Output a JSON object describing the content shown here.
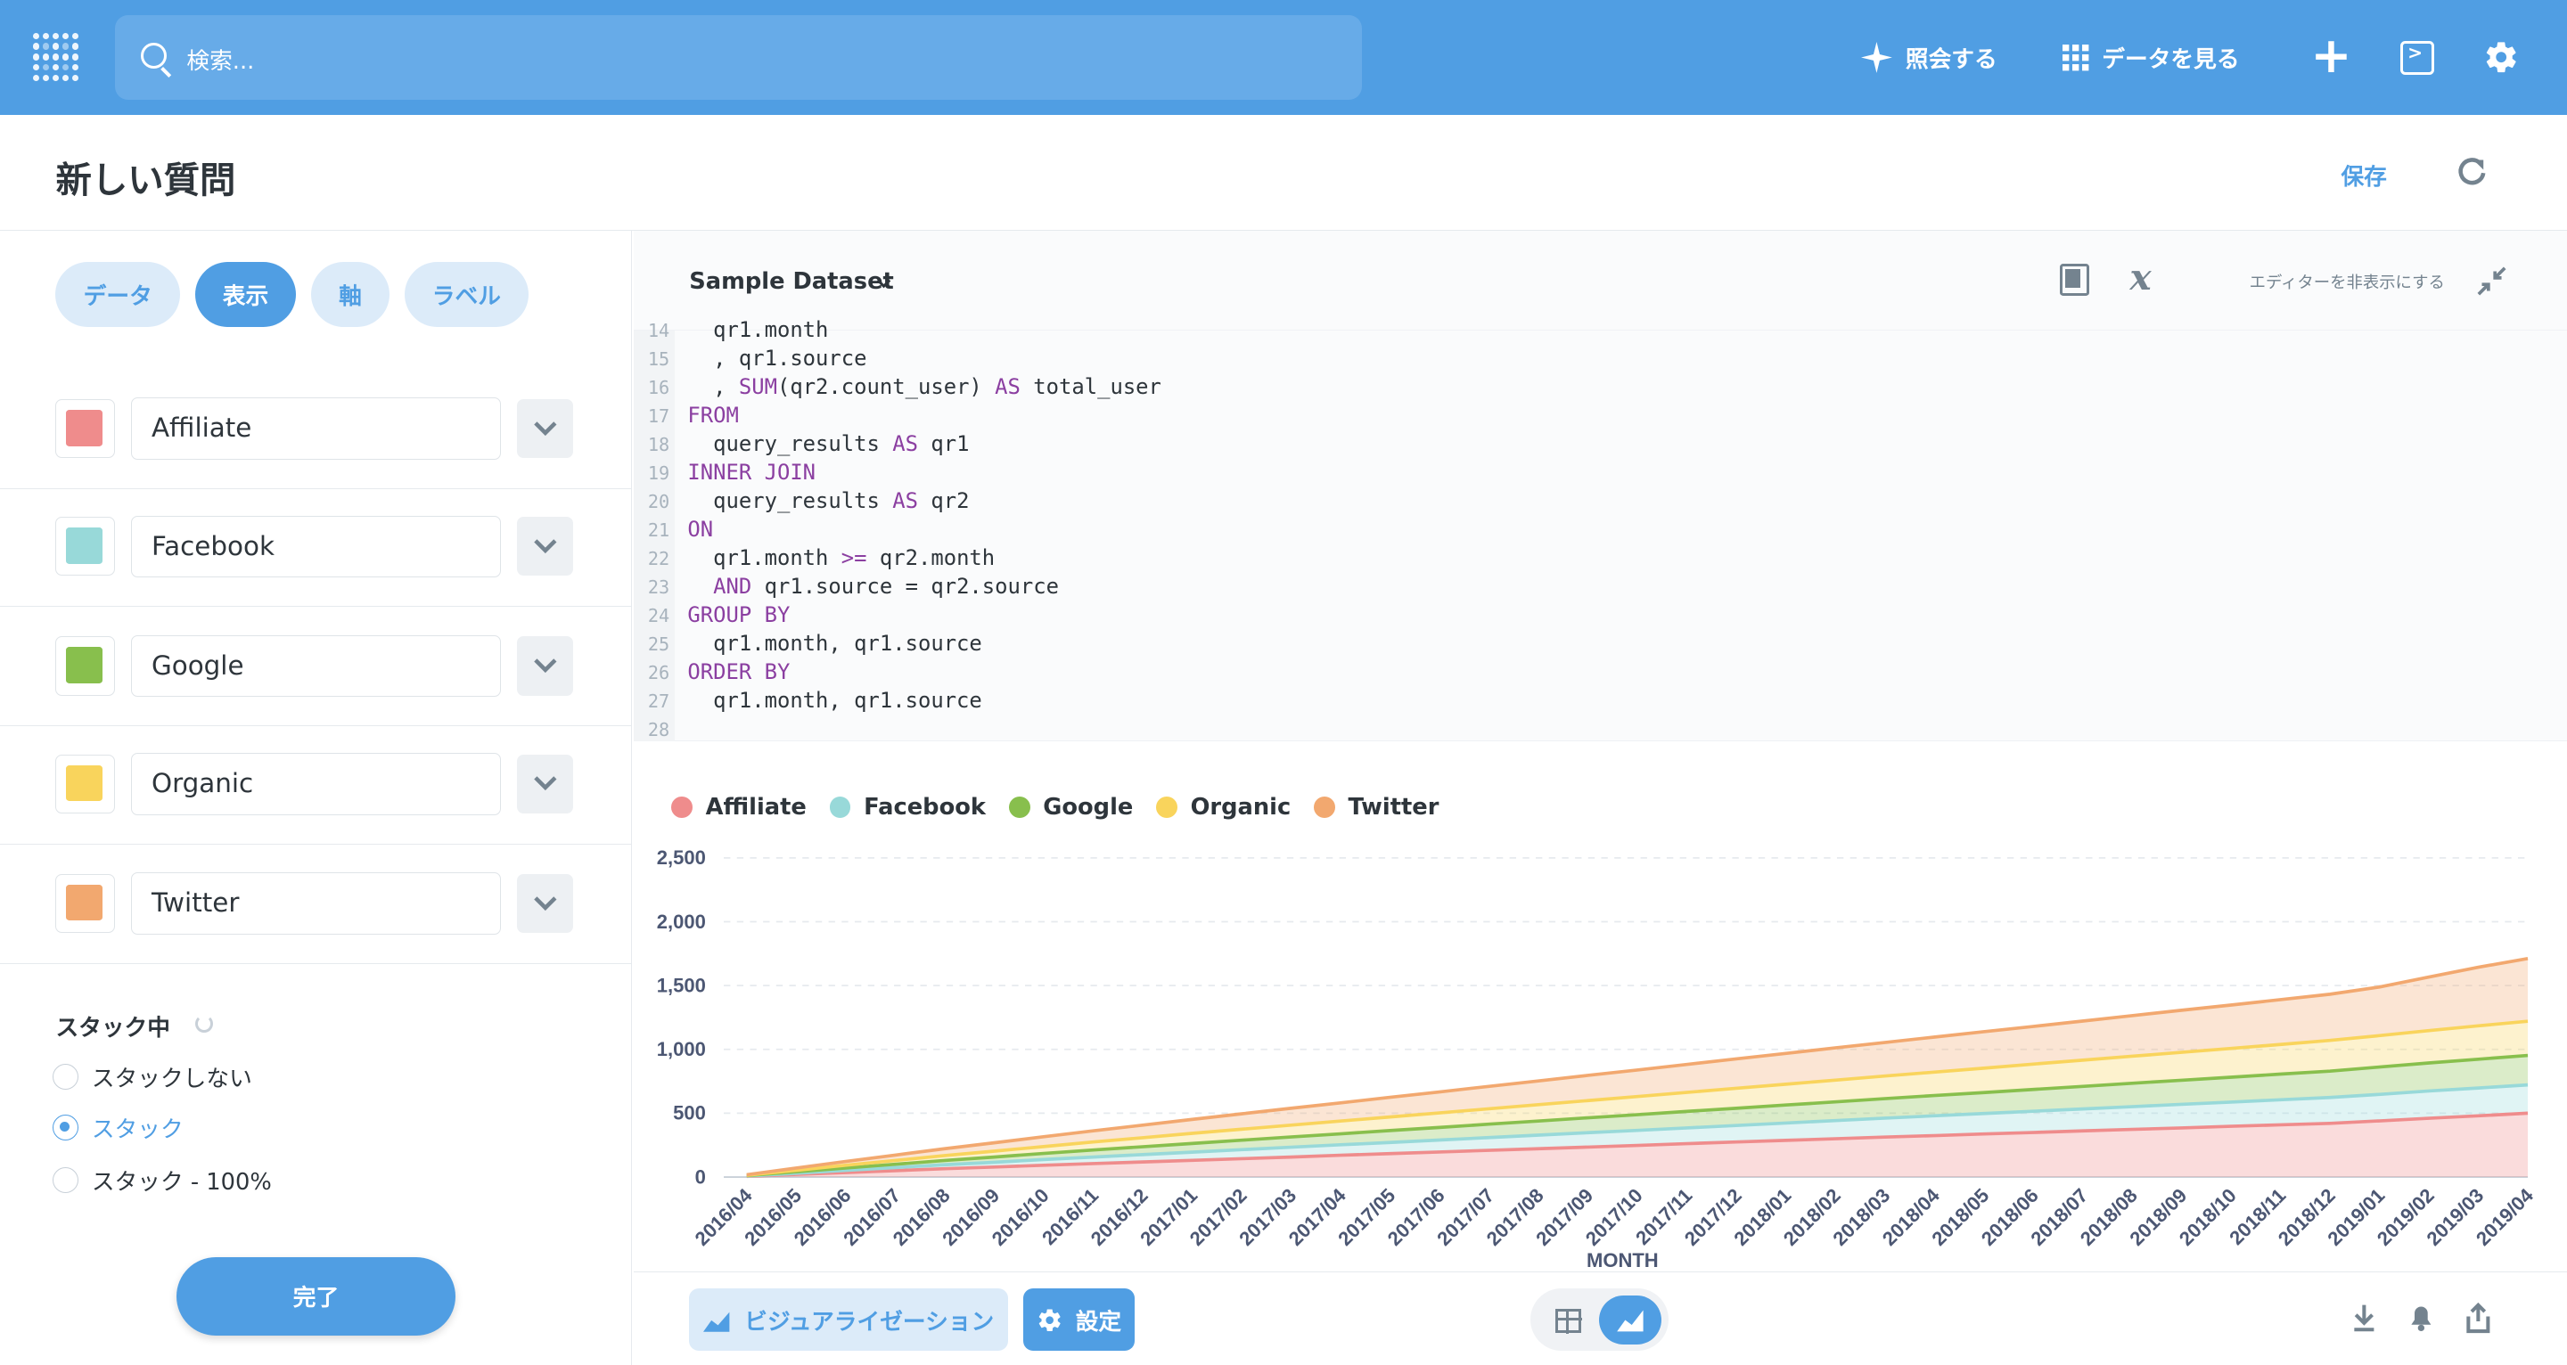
{
  "topbar": {
    "search_placeholder": "検索...",
    "ask_label": "照会する",
    "browse_label": "データを見る"
  },
  "header": {
    "title": "新しい質問",
    "save_label": "保存"
  },
  "sidebar": {
    "tabs": [
      "データ",
      "表示",
      "軸",
      "ラベル"
    ],
    "active_tab": "表示",
    "series": [
      {
        "name": "Affiliate",
        "color": "#ef8c8c"
      },
      {
        "name": "Facebook",
        "color": "#98d9d9"
      },
      {
        "name": "Google",
        "color": "#88bf4d"
      },
      {
        "name": "Organic",
        "color": "#f9d45c"
      },
      {
        "name": "Twitter",
        "color": "#f2a86f"
      }
    ],
    "stacking": {
      "title": "スタック中",
      "options": [
        "スタックしない",
        "スタック",
        "スタック - 100%"
      ],
      "selected": "スタック"
    },
    "done_label": "完了"
  },
  "editor": {
    "dataset": "Sample Dataset",
    "hide_label": "エディターを非表示にする",
    "lines": [
      {
        "n": "14",
        "text": "  qr1.month"
      },
      {
        "n": "15",
        "text": "  , qr1.source"
      },
      {
        "n": "16",
        "text": "  , SUM(qr2.count_user) AS total_user"
      },
      {
        "n": "17",
        "text": "FROM"
      },
      {
        "n": "18",
        "text": "  query_results AS qr1"
      },
      {
        "n": "19",
        "text": "INNER JOIN"
      },
      {
        "n": "20",
        "text": "  query_results AS qr2"
      },
      {
        "n": "21",
        "text": "ON"
      },
      {
        "n": "22",
        "text": "  qr1.month >= qr2.month"
      },
      {
        "n": "23",
        "text": "  AND qr1.source = qr2.source"
      },
      {
        "n": "24",
        "text": "GROUP BY"
      },
      {
        "n": "25",
        "text": "  qr1.month, qr1.source"
      },
      {
        "n": "26",
        "text": "ORDER BY"
      },
      {
        "n": "27",
        "text": "  qr1.month, qr1.source"
      },
      {
        "n": "28",
        "text": ""
      }
    ]
  },
  "footer": {
    "viz_label": "ビジュアライゼーション",
    "settings_label": "設定"
  },
  "chart_data": {
    "type": "area",
    "stacked": true,
    "x": [
      "2016/04",
      "2016/05",
      "2016/06",
      "2016/07",
      "2016/08",
      "2016/09",
      "2016/10",
      "2016/11",
      "2016/12",
      "2017/01",
      "2017/02",
      "2017/03",
      "2017/04",
      "2017/05",
      "2017/06",
      "2017/07",
      "2017/08",
      "2017/09",
      "2017/10",
      "2017/11",
      "2017/12",
      "2018/01",
      "2018/02",
      "2018/03",
      "2018/04",
      "2018/05",
      "2018/06",
      "2018/07",
      "2018/08",
      "2018/09",
      "2018/10",
      "2018/11",
      "2018/12",
      "2019/01",
      "2019/02",
      "2019/03",
      "2019/04"
    ],
    "series": [
      {
        "name": "Affiliate",
        "values": [
          5,
          20,
          35,
          50,
          65,
          78,
          92,
          105,
          118,
          131,
          144,
          157,
          170,
          183,
          196,
          209,
          222,
          235,
          248,
          261,
          274,
          287,
          300,
          313,
          325,
          337,
          349,
          361,
          373,
          385,
          397,
          409,
          421,
          440,
          460,
          480,
          500
        ]
      },
      {
        "name": "Facebook",
        "values": [
          3,
          10,
          17,
          24,
          31,
          38,
          45,
          52,
          58,
          64,
          70,
          76,
          82,
          88,
          94,
          100,
          106,
          112,
          118,
          124,
          130,
          136,
          142,
          148,
          154,
          160,
          166,
          172,
          178,
          184,
          190,
          196,
          202,
          208,
          214,
          218,
          222
        ]
      },
      {
        "name": "Google",
        "values": [
          3,
          11,
          19,
          26,
          33,
          40,
          47,
          54,
          61,
          68,
          75,
          81,
          87,
          93,
          99,
          105,
          111,
          117,
          123,
          129,
          135,
          141,
          147,
          153,
          159,
          165,
          171,
          177,
          183,
          189,
          195,
          201,
          207,
          213,
          219,
          225,
          231
        ]
      },
      {
        "name": "Organic",
        "values": [
          3,
          12,
          21,
          30,
          39,
          47,
          55,
          63,
          71,
          79,
          86,
          93,
          100,
          107,
          114,
          121,
          128,
          135,
          142,
          149,
          156,
          163,
          170,
          177,
          184,
          191,
          198,
          205,
          212,
          219,
          226,
          233,
          240,
          247,
          254,
          261,
          268
        ]
      },
      {
        "name": "Twitter",
        "values": [
          4,
          18,
          30,
          42,
          54,
          65,
          76,
          87,
          98,
          109,
          120,
          131,
          142,
          153,
          164,
          175,
          186,
          197,
          208,
          219,
          230,
          241,
          252,
          263,
          274,
          285,
          296,
          307,
          318,
          329,
          340,
          351,
          362,
          380,
          420,
          460,
          490
        ]
      }
    ],
    "y_ticks": [
      "0",
      "500",
      "1,000",
      "1,500",
      "2,000",
      "2,500"
    ],
    "ylim": [
      0,
      2500
    ],
    "xlabel": "MONTH",
    "grid": true,
    "legend_position": "top-left"
  }
}
